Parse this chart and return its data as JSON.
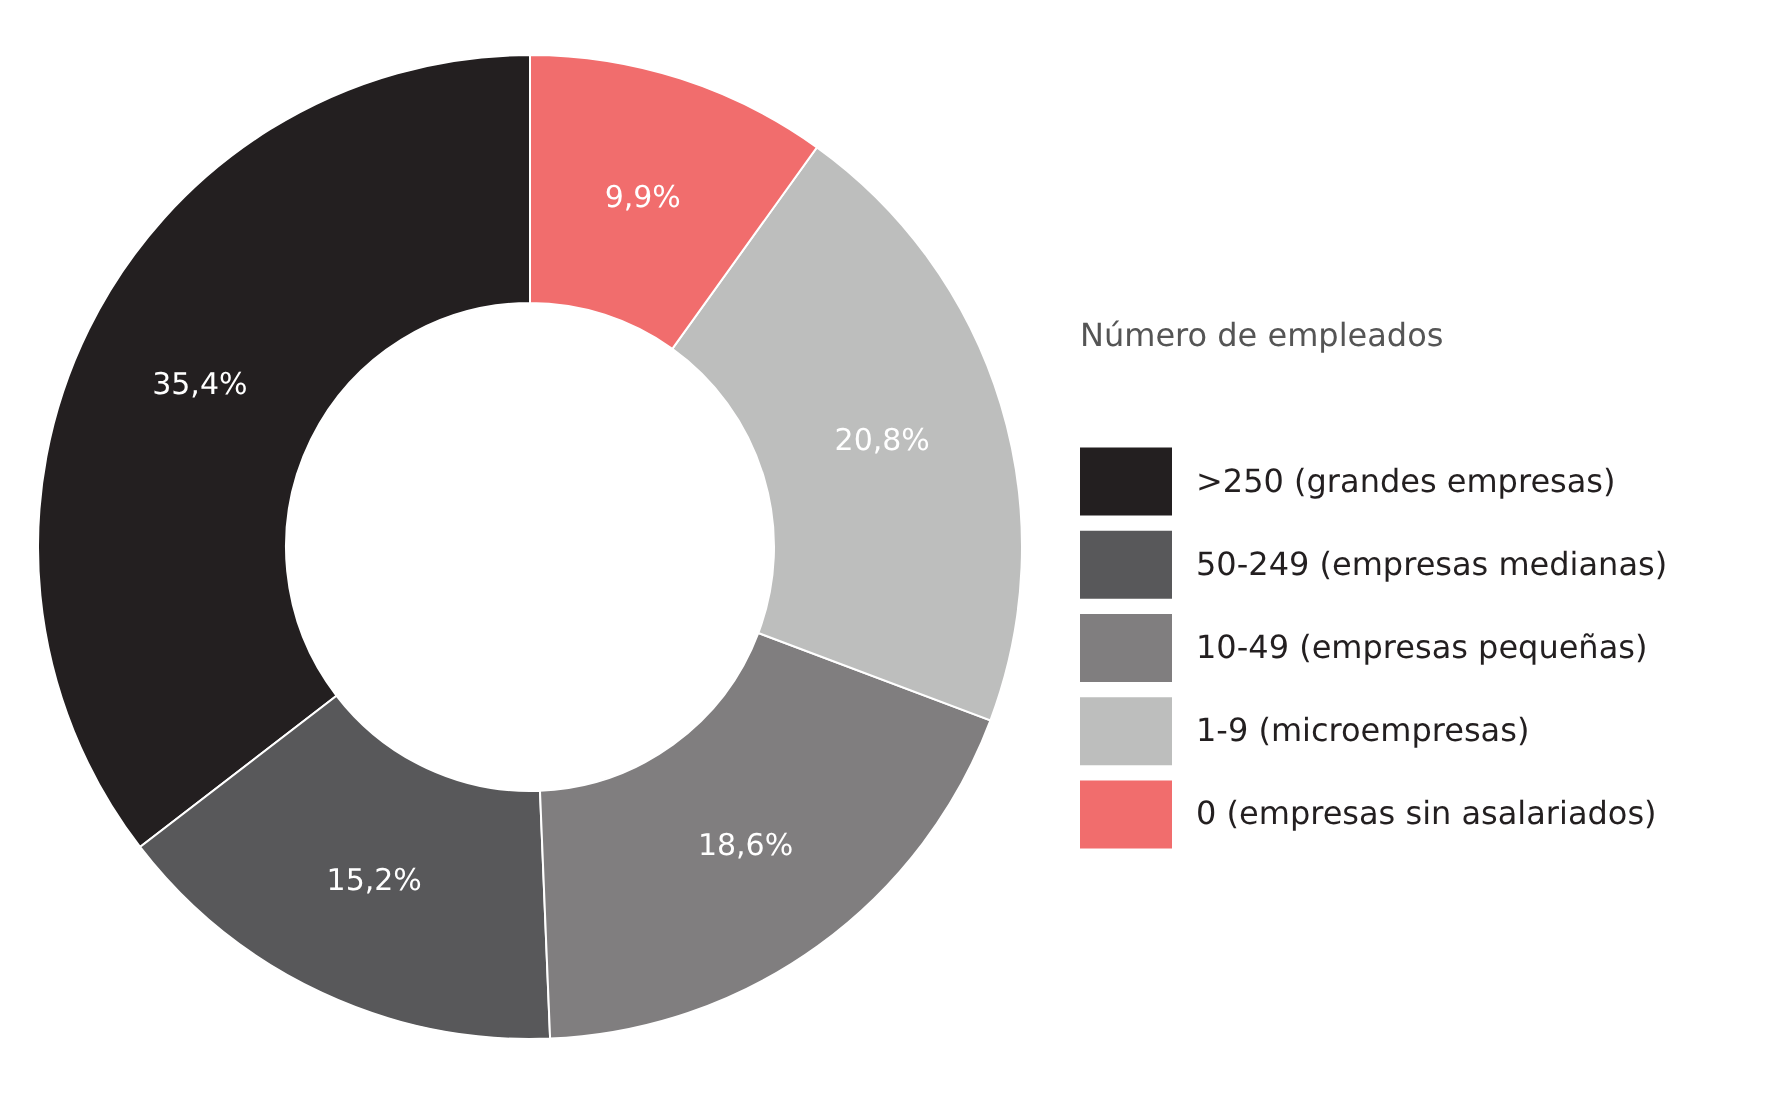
{
  "chart_data": {
    "type": "donut",
    "legend_title": "Número de empleados",
    "categories": [
      ">250 (grandes empresas)",
      "50-249 (empresas medianas)",
      "10-49 (empresas pequeñas)",
      "1-9 (microempresas)",
      "0 (empresas sin asalariados)"
    ],
    "values": [
      35.4,
      15.2,
      18.6,
      20.8,
      9.9
    ],
    "value_labels": [
      "35,4%",
      "15,2%",
      "18,6%",
      "20,8%",
      "9,9%"
    ],
    "colors": [
      "#231f20",
      "#58585a",
      "#807e7f",
      "#bdbebd",
      "#f16d6d"
    ],
    "legend": "right"
  }
}
